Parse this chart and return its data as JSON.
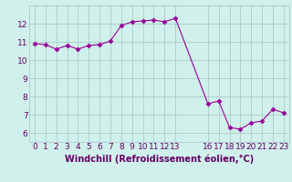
{
  "x": [
    0,
    1,
    2,
    3,
    4,
    5,
    6,
    7,
    8,
    9,
    10,
    11,
    12,
    13,
    16,
    17,
    18,
    19,
    20,
    21,
    22,
    23
  ],
  "y": [
    10.9,
    10.85,
    10.6,
    10.8,
    10.6,
    10.8,
    10.85,
    11.05,
    11.9,
    12.1,
    12.15,
    12.2,
    12.1,
    12.3,
    7.6,
    7.75,
    6.3,
    6.2,
    6.55,
    6.65,
    7.3,
    7.1
  ],
  "line_color": "#990099",
  "marker": "D",
  "marker_size": 2.5,
  "bg_color": "#cff0eb",
  "grid_color": "#aaccc8",
  "xlabel": "Windchill (Refroidissement éolien,°C)",
  "xlabel_color": "#660066",
  "ylim": [
    5.5,
    13.0
  ],
  "xlim": [
    -0.5,
    23.5
  ],
  "yticks": [
    6,
    7,
    8,
    9,
    10,
    11,
    12
  ],
  "font_color": "#660066",
  "tick_label_size": 6.5,
  "axis_label_size": 7.0
}
